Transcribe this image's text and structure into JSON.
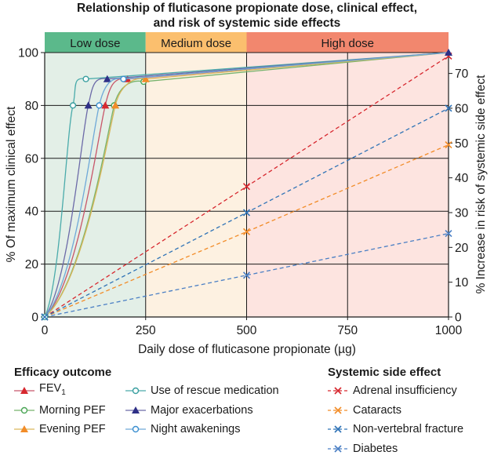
{
  "chart_data": {
    "type": "line",
    "title": "Relationship of fluticasone propionate dose, clinical effect, and risk of systemic side effects",
    "title_lines": [
      "Relationship of  fluticasone propionate dose, clinical effect,",
      "and risk of systemic side effects"
    ],
    "xlabel": "Daily dose of fluticasone propionate (µg)",
    "ylabel_left": "% Of maximum clinical effect",
    "ylabel_right": "% Increase in risk of systemic side effect",
    "xlim": [
      0,
      1000
    ],
    "ylim_left": [
      0,
      100
    ],
    "ylim_right": [
      0,
      76
    ],
    "x_ticks": [
      0,
      250,
      500,
      750,
      1000
    ],
    "y_ticks_left": [
      0,
      20,
      40,
      60,
      80,
      100
    ],
    "y_ticks_right": [
      0,
      10,
      20,
      30,
      40,
      50,
      60,
      70
    ],
    "zones": [
      {
        "label": "Low dose",
        "from": 0,
        "to": 250,
        "header_color": "#5bb98b",
        "fill_color": "#e3efe7"
      },
      {
        "label": "Medium dose",
        "from": 250,
        "to": 500,
        "header_color": "#fbbf6e",
        "fill_color": "#fdf1e1"
      },
      {
        "label": "High dose",
        "from": 500,
        "to": 1000,
        "header_color": "#f2876e",
        "fill_color": "#fde4e0"
      }
    ],
    "efficacy_series": [
      {
        "name": "FEV1",
        "name_main": "FEV",
        "name_sub": "1",
        "color": "#d7282f",
        "line_color": "#c8566a",
        "marker": "triangle-up",
        "points": [
          [
            0,
            0
          ],
          [
            150,
            80
          ],
          [
            205,
            90
          ],
          [
            1000,
            100
          ]
        ]
      },
      {
        "name": "Morning PEF",
        "color": "#4aa556",
        "line_color": "#77b36c",
        "marker": "circle-open",
        "points": [
          [
            0,
            0
          ],
          [
            172,
            80
          ],
          [
            245,
            89
          ],
          [
            1000,
            100
          ]
        ]
      },
      {
        "name": "Evening PEF",
        "color": "#f28c28",
        "line_color": "#d9b65a",
        "marker": "triangle-up",
        "points": [
          [
            0,
            0
          ],
          [
            175,
            80
          ],
          [
            250,
            90
          ],
          [
            1000,
            100
          ]
        ]
      },
      {
        "name": "Use of rescue medication",
        "color": "#3a9fa0",
        "line_color": "#4aabab",
        "marker": "circle-open",
        "points": [
          [
            0,
            0
          ],
          [
            70,
            80
          ],
          [
            102,
            90
          ],
          [
            1000,
            100
          ]
        ]
      },
      {
        "name": "Major exacerbations",
        "color": "#2e2f86",
        "line_color": "#6c6aa8",
        "marker": "triangle-up",
        "points": [
          [
            0,
            0
          ],
          [
            108,
            80
          ],
          [
            155,
            90
          ],
          [
            1000,
            100
          ]
        ]
      },
      {
        "name": "Night awakenings",
        "color": "#3b8fd0",
        "line_color": "#6fa9d8",
        "marker": "circle-open",
        "points": [
          [
            0,
            0
          ],
          [
            135,
            80
          ],
          [
            195,
            90
          ],
          [
            1000,
            100
          ]
        ]
      }
    ],
    "side_effect_series": [
      {
        "name": "Adrenal insufficiency",
        "color": "#d7282f",
        "points": [
          [
            0,
            0
          ],
          [
            500,
            37.5
          ],
          [
            1000,
            75
          ]
        ]
      },
      {
        "name": "Cataracts",
        "color": "#f28c28",
        "points": [
          [
            0,
            0
          ],
          [
            500,
            24.5
          ],
          [
            1000,
            49.5
          ]
        ]
      },
      {
        "name": "Non-vertebral fracture",
        "color": "#2f73b6",
        "points": [
          [
            0,
            0
          ],
          [
            500,
            30
          ],
          [
            1000,
            60
          ]
        ]
      },
      {
        "name": "Diabetes",
        "color": "#4a7fc4",
        "points": [
          [
            0,
            0
          ],
          [
            500,
            12
          ],
          [
            1000,
            24
          ]
        ]
      }
    ]
  },
  "legend": {
    "efficacy_title": "Efficacy outcome",
    "side_effect_title": "Systemic side effect"
  }
}
